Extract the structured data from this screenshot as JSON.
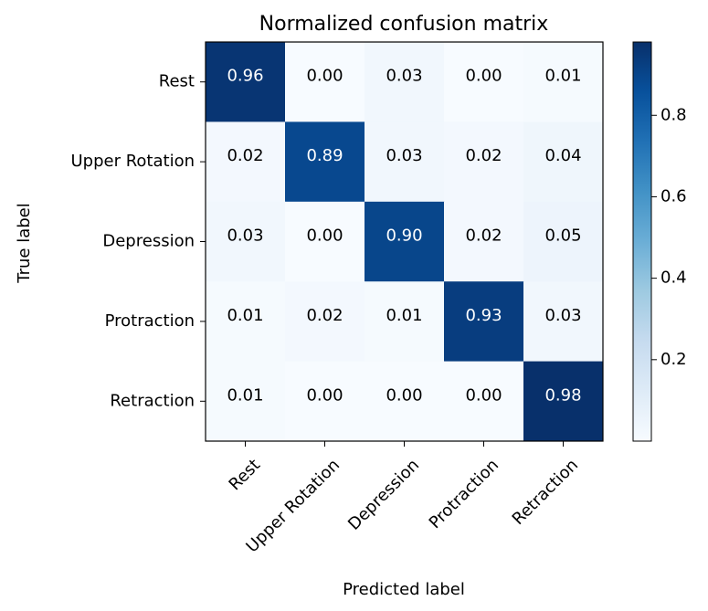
{
  "chart_data": {
    "type": "heatmap",
    "title": "Normalized confusion matrix",
    "xlabel": "Predicted label",
    "ylabel": "True label",
    "x_categories": [
      "Rest",
      "Upper Rotation",
      "Depression",
      "Protraction",
      "Retraction"
    ],
    "y_categories": [
      "Rest",
      "Upper Rotation",
      "Depression",
      "Protraction",
      "Retraction"
    ],
    "values": [
      [
        0.96,
        0.0,
        0.03,
        0.0,
        0.01
      ],
      [
        0.02,
        0.89,
        0.03,
        0.02,
        0.04
      ],
      [
        0.03,
        0.0,
        0.9,
        0.02,
        0.05
      ],
      [
        0.01,
        0.02,
        0.01,
        0.93,
        0.03
      ],
      [
        0.01,
        0.0,
        0.0,
        0.0,
        0.98
      ]
    ],
    "value_format": "0.00",
    "colormap": "Blues",
    "colormap_stops": [
      "#f7fbff",
      "#deebf7",
      "#c6dbef",
      "#9ecae1",
      "#6baed6",
      "#4292c6",
      "#2171b5",
      "#08519c",
      "#08306b"
    ],
    "colorbar": {
      "range": [
        0.0,
        0.98
      ],
      "ticks": [
        0.2,
        0.4,
        0.6,
        0.8
      ],
      "tick_labels": [
        "0.2",
        "0.4",
        "0.6",
        "0.8"
      ]
    },
    "text_color_light": "#ffffff",
    "text_color_dark": "#000000"
  }
}
